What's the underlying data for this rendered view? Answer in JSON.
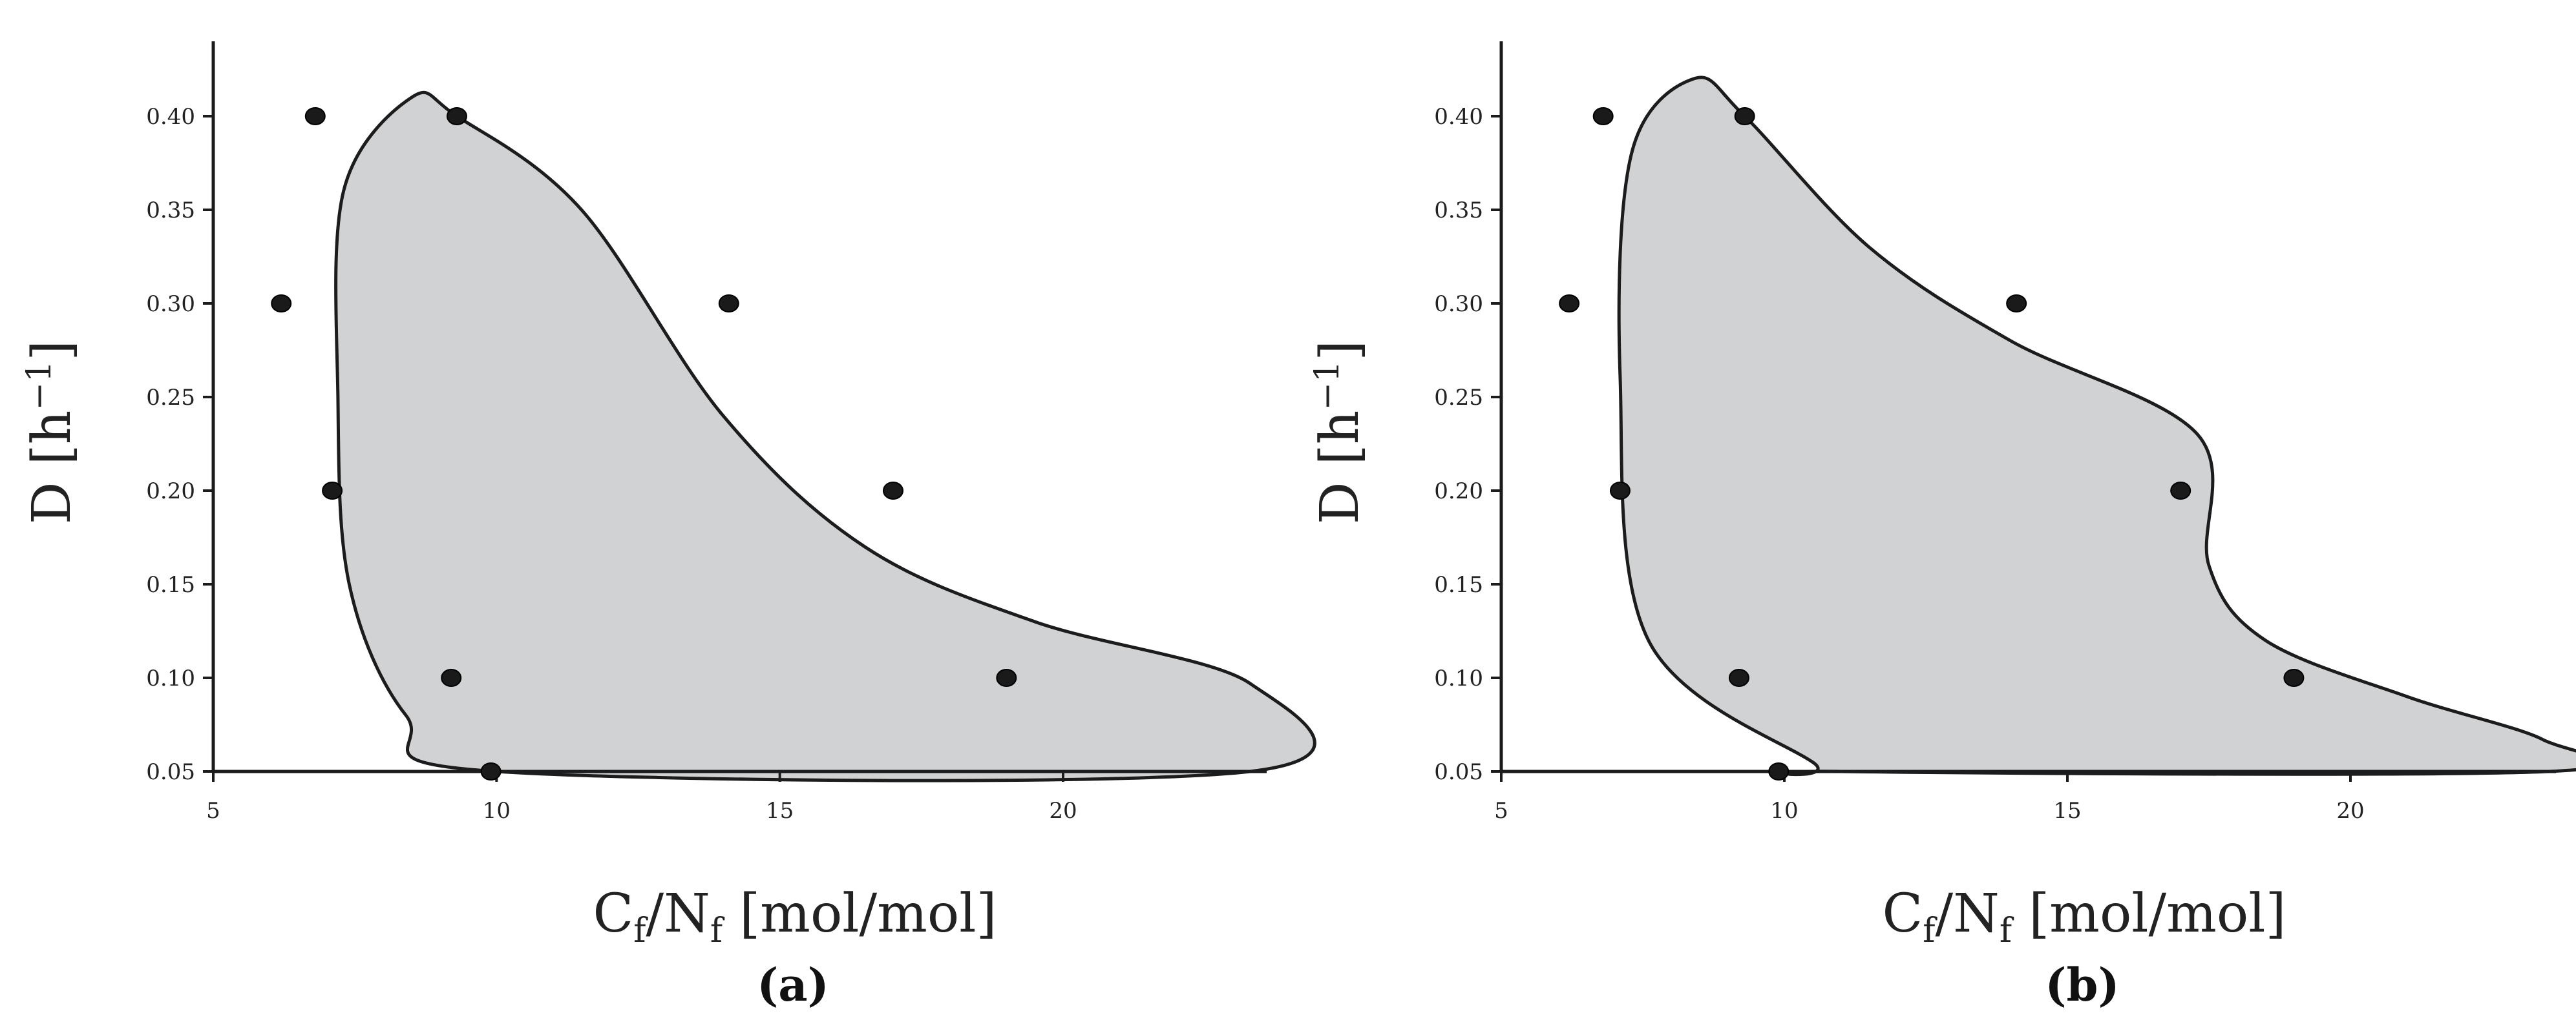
{
  "figure": {
    "panels": [
      "(a)",
      "(b)"
    ]
  },
  "colors": {
    "region_fill": "#d1d2d4",
    "region_stroke": "#1c1c1c",
    "axis": "#1c1c1c",
    "point": "#1a1a1a"
  },
  "chart_data": [
    {
      "type": "scatter",
      "panel_label": "(a)",
      "xlabel_parts": [
        "C",
        "f",
        "/N",
        "f",
        " [mol/mol]"
      ],
      "ylabel_parts": [
        "D [h",
        "−1",
        "]"
      ],
      "xlim": [
        5,
        23.5
      ],
      "ylim": [
        0.05,
        0.44
      ],
      "xticks": [
        5,
        10,
        15,
        20
      ],
      "xtick_labels": [
        "5",
        "10",
        "15",
        "20"
      ],
      "yticks": [
        0.05,
        0.1,
        0.15,
        0.2,
        0.25,
        0.3,
        0.35,
        0.4
      ],
      "ytick_labels": [
        "0.05",
        "0.10",
        "0.15",
        "0.20",
        "0.25",
        "0.30",
        "0.35",
        "0.40"
      ],
      "grid": false,
      "points": [
        {
          "x": 6.8,
          "y": 0.4
        },
        {
          "x": 9.3,
          "y": 0.4
        },
        {
          "x": 6.2,
          "y": 0.3
        },
        {
          "x": 14.1,
          "y": 0.3
        },
        {
          "x": 7.1,
          "y": 0.2
        },
        {
          "x": 17.0,
          "y": 0.2
        },
        {
          "x": 9.2,
          "y": 0.1
        },
        {
          "x": 19.0,
          "y": 0.1
        },
        {
          "x": 9.9,
          "y": 0.05
        }
      ],
      "region": {
        "description": "shaded feasible operating region bounded by a smooth curve",
        "boundary": [
          {
            "x": 10.0,
            "y": 0.05
          },
          {
            "x": 8.4,
            "y": 0.08
          },
          {
            "x": 7.4,
            "y": 0.15
          },
          {
            "x": 7.2,
            "y": 0.25
          },
          {
            "x": 7.3,
            "y": 0.36
          },
          {
            "x": 8.5,
            "y": 0.41
          },
          {
            "x": 9.3,
            "y": 0.4
          },
          {
            "x": 11.5,
            "y": 0.35
          },
          {
            "x": 14.0,
            "y": 0.24
          },
          {
            "x": 16.5,
            "y": 0.17
          },
          {
            "x": 19.5,
            "y": 0.13
          },
          {
            "x": 23.3,
            "y": 0.097
          },
          {
            "x": 23.3,
            "y": 0.05
          }
        ]
      }
    },
    {
      "type": "scatter",
      "panel_label": "(b)",
      "xlabel_parts": [
        "C",
        "f",
        "/N",
        "f",
        " [mol/mol]"
      ],
      "ylabel_parts": [
        "D [h",
        "−1",
        "]"
      ],
      "xlim": [
        5,
        23.5
      ],
      "ylim": [
        0.05,
        0.44
      ],
      "xticks": [
        5,
        10,
        15,
        20
      ],
      "xtick_labels": [
        "5",
        "10",
        "15",
        "20"
      ],
      "yticks": [
        0.05,
        0.1,
        0.15,
        0.2,
        0.25,
        0.3,
        0.35,
        0.4
      ],
      "ytick_labels": [
        "0.05",
        "0.10",
        "0.15",
        "0.20",
        "0.25",
        "0.30",
        "0.35",
        "0.40"
      ],
      "grid": false,
      "points": [
        {
          "x": 6.8,
          "y": 0.4
        },
        {
          "x": 9.3,
          "y": 0.4
        },
        {
          "x": 6.2,
          "y": 0.3
        },
        {
          "x": 14.1,
          "y": 0.3
        },
        {
          "x": 7.1,
          "y": 0.2
        },
        {
          "x": 17.0,
          "y": 0.2
        },
        {
          "x": 9.2,
          "y": 0.1
        },
        {
          "x": 19.0,
          "y": 0.1
        },
        {
          "x": 9.9,
          "y": 0.05
        }
      ],
      "region": {
        "description": "shaded feasible operating region bounded by a smooth curve",
        "boundary": [
          {
            "x": 11.0,
            "y": 0.05
          },
          {
            "x": 10.5,
            "y": 0.055
          },
          {
            "x": 7.6,
            "y": 0.12
          },
          {
            "x": 7.1,
            "y": 0.26
          },
          {
            "x": 7.3,
            "y": 0.38
          },
          {
            "x": 8.4,
            "y": 0.42
          },
          {
            "x": 9.3,
            "y": 0.4
          },
          {
            "x": 11.5,
            "y": 0.33
          },
          {
            "x": 14.0,
            "y": 0.28
          },
          {
            "x": 17.3,
            "y": 0.23
          },
          {
            "x": 17.5,
            "y": 0.16
          },
          {
            "x": 18.5,
            "y": 0.12
          },
          {
            "x": 21.0,
            "y": 0.09
          },
          {
            "x": 23.4,
            "y": 0.067
          },
          {
            "x": 23.5,
            "y": 0.05
          }
        ]
      }
    }
  ]
}
